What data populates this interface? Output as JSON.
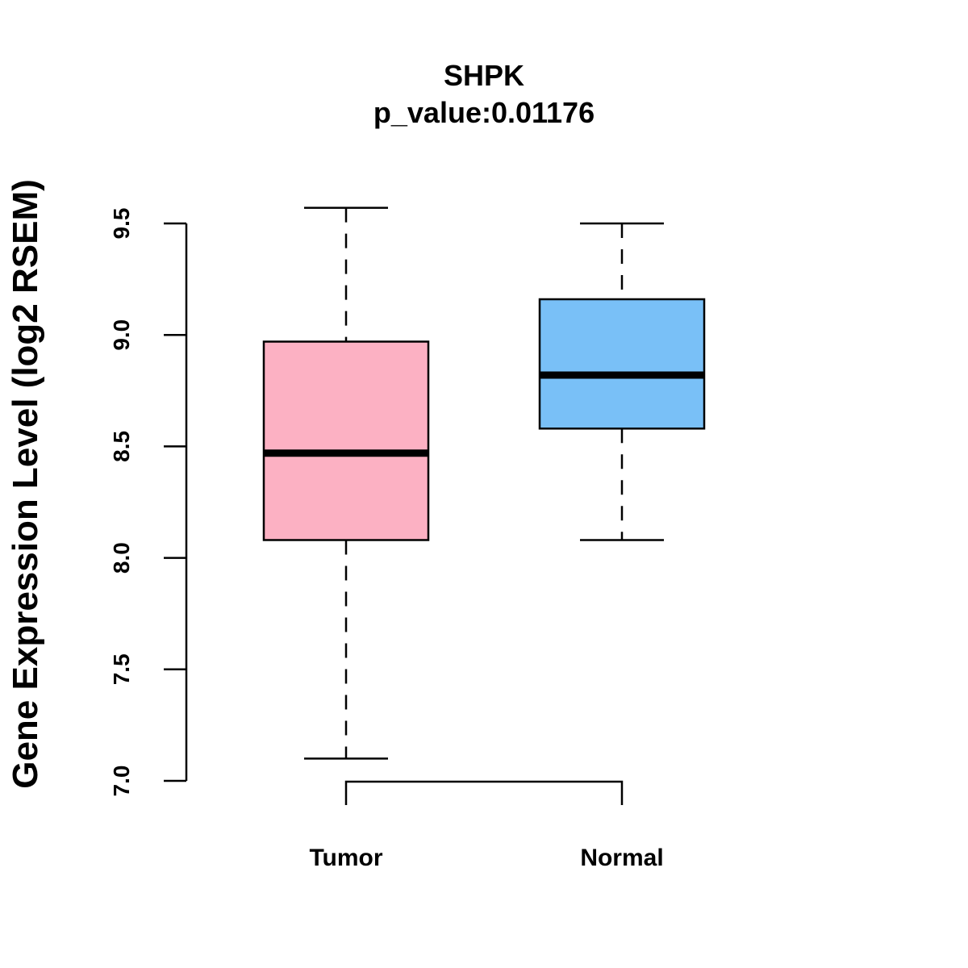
{
  "chart_data": {
    "type": "boxplot",
    "title": "SHPK",
    "subtitle": "p_value:0.01176",
    "xlabel": "",
    "ylabel": "Gene Expression Level (log2 RSEM)",
    "ylim": [
      7.0,
      9.5
    ],
    "yticks": [
      7.0,
      7.5,
      8.0,
      8.5,
      9.0,
      9.5
    ],
    "ytick_labels": [
      "7.0",
      "7.5",
      "8.0",
      "8.5",
      "9.0",
      "9.5"
    ],
    "categories": [
      "Tumor",
      "Normal"
    ],
    "series": [
      {
        "name": "Tumor",
        "whisker_low": 7.1,
        "q1": 8.08,
        "median": 8.47,
        "q3": 8.97,
        "whisker_high": 9.57,
        "color": "#FCB1C3"
      },
      {
        "name": "Normal",
        "whisker_low": 8.08,
        "q1": 8.58,
        "median": 8.82,
        "q3": 9.16,
        "whisker_high": 9.5,
        "color": "#79C0F7"
      }
    ],
    "annotations": {
      "comparison_bracket": [
        "Tumor",
        "Normal"
      ]
    },
    "grid": false,
    "legend": "none"
  }
}
